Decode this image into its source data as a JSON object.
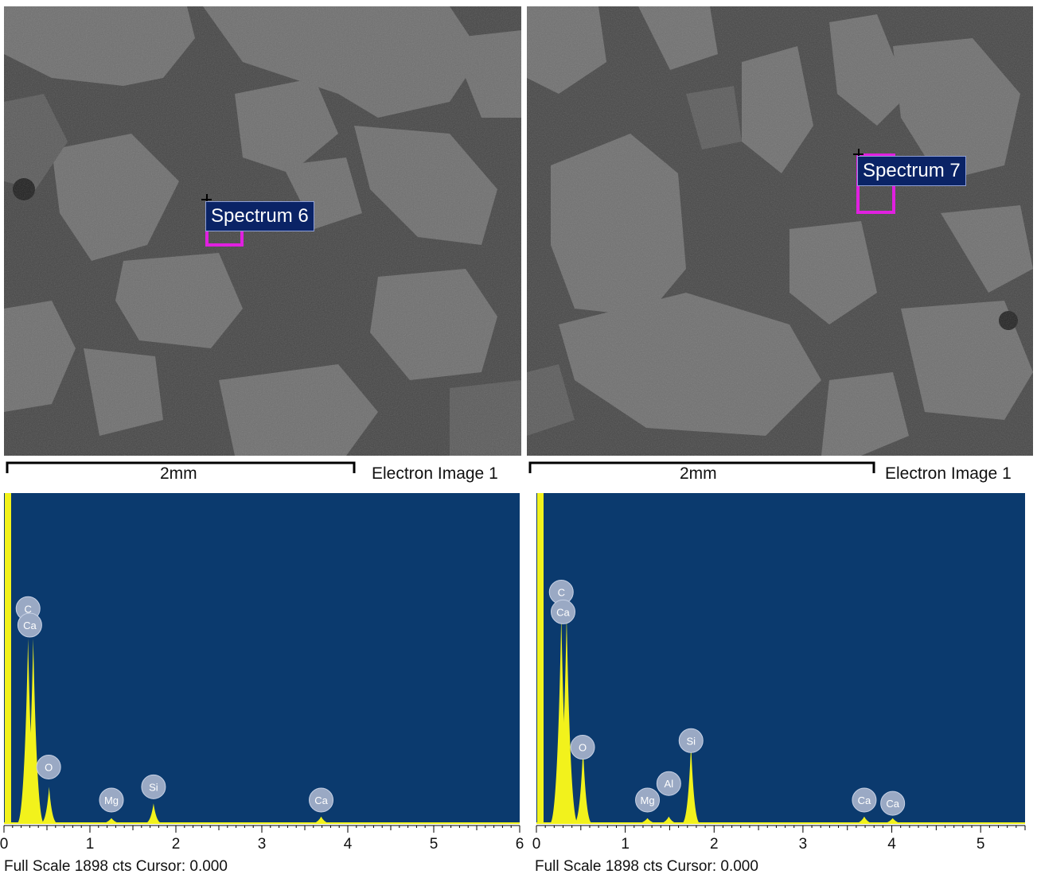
{
  "panels": [
    {
      "spectrum_tag": "Spectrum 6",
      "scale_label": "2mm",
      "image_label": "Electron Image 1",
      "footer": "Full Scale 1898 cts Cursor: 0.000",
      "x_ticks": [
        "0",
        "1",
        "2",
        "3",
        "4",
        "5",
        "6"
      ]
    },
    {
      "spectrum_tag": "Spectrum 7",
      "scale_label": "2mm",
      "image_label": "Electron Image 1",
      "footer": "Full Scale 1898 cts Cursor: 0.000",
      "x_ticks": [
        "0",
        "1",
        "2",
        "3",
        "4",
        "5"
      ]
    }
  ],
  "colors": {
    "plot_background": "#0b3a6e",
    "peak_fill": "#f2f21c",
    "peak_label_fill": "#9aa9c4",
    "roi_box": "#e020e0",
    "tag_background": "#0a2366"
  },
  "chart_data": [
    {
      "type": "area",
      "xlabel": "",
      "ylabel": "",
      "xlim": [
        0,
        6.0
      ],
      "full_scale_counts": 1898,
      "peaks": [
        {
          "element": "C",
          "energy": 0.28,
          "height": 0.56
        },
        {
          "element": "Ca",
          "energy": 0.34,
          "height": 0.56
        },
        {
          "element": "O",
          "energy": 0.525,
          "height": 0.11
        },
        {
          "element": "Mg",
          "energy": 1.25,
          "height": 0.015
        },
        {
          "element": "Si",
          "energy": 1.74,
          "height": 0.06
        },
        {
          "element": "Ca",
          "energy": 3.69,
          "height": 0.02
        }
      ],
      "peak_labels": [
        {
          "text": "C",
          "energy": 0.28,
          "level": 0.65
        },
        {
          "text": "Ca",
          "energy": 0.3,
          "level": 0.6
        },
        {
          "text": "O",
          "energy": 0.52,
          "level": 0.17
        },
        {
          "text": "Mg",
          "energy": 1.25,
          "level": 0.07
        },
        {
          "text": "Si",
          "energy": 1.74,
          "level": 0.11
        },
        {
          "text": "Ca",
          "energy": 3.69,
          "level": 0.07
        }
      ]
    },
    {
      "type": "area",
      "xlabel": "",
      "ylabel": "",
      "xlim": [
        0,
        5.5
      ],
      "full_scale_counts": 1898,
      "peaks": [
        {
          "element": "C",
          "energy": 0.28,
          "height": 0.63
        },
        {
          "element": "Ca",
          "energy": 0.34,
          "height": 0.63
        },
        {
          "element": "O",
          "energy": 0.525,
          "height": 0.23
        },
        {
          "element": "Mg",
          "energy": 1.25,
          "height": 0.015
        },
        {
          "element": "Al",
          "energy": 1.49,
          "height": 0.02
        },
        {
          "element": "Si",
          "energy": 1.74,
          "height": 0.24
        },
        {
          "element": "Ca",
          "energy": 3.69,
          "height": 0.02
        },
        {
          "element": "Ca",
          "energy": 4.01,
          "height": 0.015
        }
      ],
      "peak_labels": [
        {
          "text": "C",
          "energy": 0.28,
          "level": 0.7
        },
        {
          "text": "Ca",
          "energy": 0.3,
          "level": 0.64
        },
        {
          "text": "O",
          "energy": 0.52,
          "level": 0.23
        },
        {
          "text": "Mg",
          "energy": 1.25,
          "level": 0.07
        },
        {
          "text": "Al",
          "energy": 1.49,
          "level": 0.12
        },
        {
          "text": "Si",
          "energy": 1.74,
          "level": 0.25
        },
        {
          "text": "Ca",
          "energy": 3.69,
          "level": 0.07
        },
        {
          "text": "Ca",
          "energy": 4.01,
          "level": 0.06
        }
      ]
    }
  ]
}
